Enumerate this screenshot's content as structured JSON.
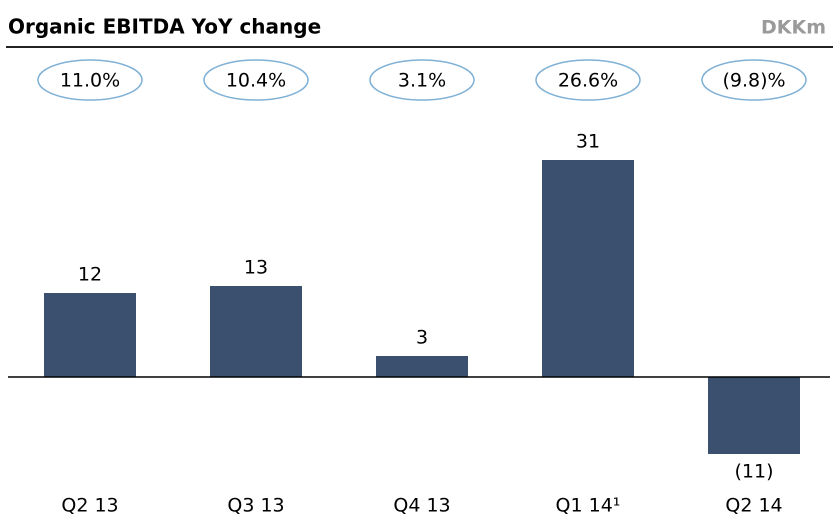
{
  "chart_data": {
    "type": "bar",
    "title": "Organic EBITDA YoY change",
    "unit_label": "DKKm",
    "categories": [
      "Q2 13",
      "Q3 13",
      "Q4 13",
      "Q1 14¹",
      "Q2 14"
    ],
    "values": [
      12,
      13,
      3,
      31,
      -11
    ],
    "value_labels": [
      "12",
      "13",
      "3",
      "31",
      "(11)"
    ],
    "color": "#3a506e",
    "yoy_growth": {
      "values": [
        11.0,
        10.4,
        3.1,
        26.6,
        -9.8
      ],
      "value_labels": [
        "11.0%",
        "10.4%",
        "3.1%",
        "26.6%",
        "(9.8)%"
      ],
      "color": "#7fb1d6"
    },
    "ylim": [
      -12,
      34
    ]
  }
}
